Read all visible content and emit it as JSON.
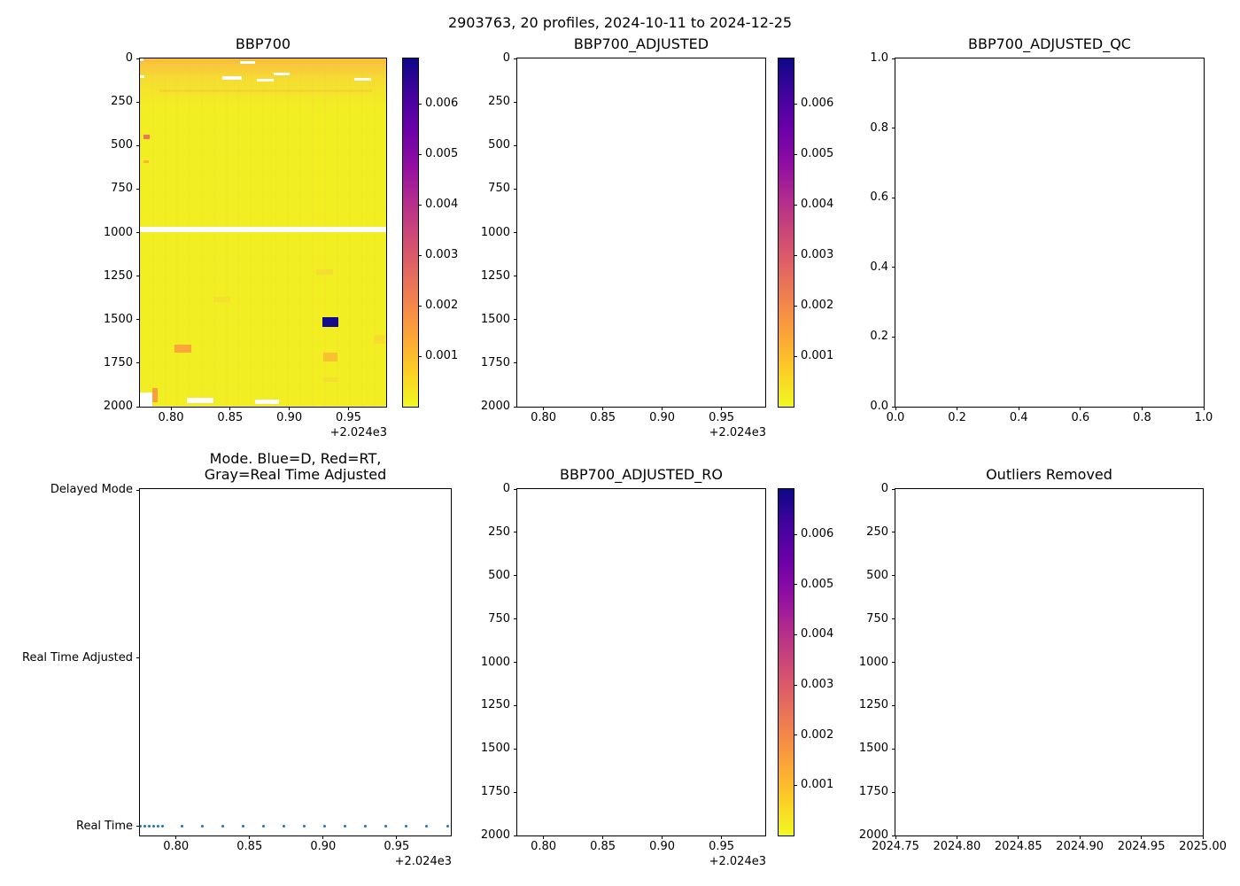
{
  "chart_data": {
    "type": "heatmap",
    "suptitle": "2903763, 20 profiles, 2024-10-11 to 2024-12-25",
    "legend_position": "none",
    "grid": false,
    "colorbar": {
      "els": [
        "cb1",
        "cb2",
        "cb5"
      ],
      "vmin": 0.0,
      "vmax": 0.0069,
      "ticks": [
        0.006,
        0.005,
        0.004,
        0.003,
        0.002,
        0.001
      ],
      "tick_labels": [
        "0.006",
        "0.005",
        "0.004",
        "0.003",
        "0.002",
        "0.001"
      ],
      "gradient": [
        "#0d0887",
        "#41049d",
        "#6a00a8",
        "#8f0da4",
        "#b12a90",
        "#cc4778",
        "#e16462",
        "#f2844b",
        "#fca636",
        "#fcce25",
        "#f0f921"
      ]
    },
    "panels": [
      {
        "el": "plot1",
        "title": "BBP700",
        "xlim": [
          2024.7738,
          2024.9818
        ],
        "ylim": [
          0,
          2000
        ],
        "xticks": [
          2024.8,
          2024.85,
          2024.9,
          2024.95
        ],
        "xtick_labels": [
          "0.80",
          "0.85",
          "0.90",
          "0.95"
        ],
        "x_offset_text": "+2.024e3",
        "yticks": [
          0,
          250,
          500,
          750,
          1000,
          1250,
          1500,
          1750,
          2000
        ],
        "ytick_labels": [
          "0",
          "250",
          "500",
          "750",
          "1000",
          "1250",
          "1500",
          "1750",
          "2000"
        ],
        "heatmap": {
          "base_color": "#f1ef22",
          "surface_colors": [
            "#f7ba3a",
            "#f8c93a",
            "#f5dd31"
          ],
          "patches": [
            {
              "x0": 2024.7738,
              "x1": 2024.9818,
              "d0": 968,
              "d1": 996,
              "c": "#ffffff"
            },
            {
              "x0": 2024.9278,
              "x1": 2024.9413,
              "d0": 1488,
              "d1": 1540,
              "c": "#140d8b"
            },
            {
              "x0": 2024.8029,
              "x1": 2024.8172,
              "d0": 1642,
              "d1": 1691,
              "c": "#faa63a"
            },
            {
              "x0": 2024.9288,
              "x1": 2024.9404,
              "d0": 1690,
              "d1": 1738,
              "c": "#f9c132"
            },
            {
              "x0": 2024.7846,
              "x1": 2024.7891,
              "d0": 1891,
              "d1": 1976,
              "c": "#f8a03c"
            },
            {
              "x0": 2024.7738,
              "x1": 2024.7846,
              "d0": 1917,
              "d1": 2000,
              "c": "#ffffff"
            },
            {
              "x0": 2024.858,
              "x1": 2024.8714,
              "d0": 16,
              "d1": 30,
              "c": "#ffffff"
            },
            {
              "x0": 2024.8436,
              "x1": 2024.8602,
              "d0": 103,
              "d1": 121,
              "c": "#ffffff"
            },
            {
              "x0": 2024.8865,
              "x1": 2024.9,
              "d0": 82,
              "d1": 95,
              "c": "#ffffff"
            },
            {
              "x0": 2024.8729,
              "x1": 2024.8865,
              "d0": 118,
              "d1": 131,
              "c": "#ffffff"
            },
            {
              "x0": 2024.9549,
              "x1": 2024.9692,
              "d0": 113,
              "d1": 128,
              "c": "#ffffff"
            },
            {
              "x0": 2024.79,
              "x1": 2024.97,
              "d0": 180,
              "d1": 192,
              "c": "#f8bd3866"
            },
            {
              "x0": 2024.7771,
              "x1": 2024.7821,
              "d0": 440,
              "d1": 465,
              "c": "#ef7856"
            },
            {
              "x0": 2024.7771,
              "x1": 2024.7811,
              "d0": 585,
              "d1": 600,
              "c": "#f9b43a"
            },
            {
              "x0": 2024.923,
              "x1": 2024.937,
              "d0": 1210,
              "d1": 1242,
              "c": "#f5de30"
            },
            {
              "x0": 2024.836,
              "x1": 2024.85,
              "d0": 1368,
              "d1": 1400,
              "c": "#f5e030"
            },
            {
              "x0": 2024.971,
              "x1": 2024.981,
              "d0": 1586,
              "d1": 1640,
              "c": "#f5df2c"
            },
            {
              "x0": 2024.929,
              "x1": 2024.9415,
              "d0": 1830,
              "d1": 1858,
              "c": "#f5df30"
            },
            {
              "x0": 2024.8134,
              "x1": 2024.836,
              "d0": 1950,
              "d1": 1982,
              "c": "#ffffff"
            },
            {
              "x0": 2024.8714,
              "x1": 2024.891,
              "d0": 1958,
              "d1": 1985,
              "c": "#ffffff"
            },
            {
              "x0": 2024.7738,
              "x1": 2024.7775,
              "d0": 95,
              "d1": 112,
              "c": "#ffffff"
            },
            {
              "x0": 2024.7738,
              "x1": 2024.7768,
              "d0": 2,
              "d1": 14,
              "c": "#ffffff"
            }
          ]
        }
      },
      {
        "el": "plot2",
        "title": "BBP700_ADJUSTED",
        "xlim": [
          2024.7779,
          2024.9869
        ],
        "ylim": [
          0,
          2000
        ],
        "xticks": [
          2024.8,
          2024.85,
          2024.9,
          2024.95
        ],
        "xtick_labels": [
          "0.80",
          "0.85",
          "0.90",
          "0.95"
        ],
        "x_offset_text": "+2.024e3",
        "yticks": [
          0,
          250,
          500,
          750,
          1000,
          1250,
          1500,
          1750,
          2000
        ],
        "ytick_labels": [
          "0",
          "250",
          "500",
          "750",
          "1000",
          "1250",
          "1500",
          "1750",
          "2000"
        ]
      },
      {
        "el": "plot3",
        "title": "BBP700_ADJUSTED_QC",
        "xlim": [
          0,
          1
        ],
        "ylim": [
          1,
          0
        ],
        "xticks": [
          0,
          0.2,
          0.4,
          0.6,
          0.8,
          1.0
        ],
        "xtick_labels": [
          "0.0",
          "0.2",
          "0.4",
          "0.6",
          "0.8",
          "1.0"
        ],
        "yticks": [
          1.0,
          0.8,
          0.6,
          0.4,
          0.2,
          0.0
        ],
        "ytick_labels": [
          "1.0",
          "0.8",
          "0.6",
          "0.4",
          "0.2",
          "0.0"
        ]
      },
      {
        "el": "plot4",
        "title": "Mode. Blue=D, Red=RT,\nGray=Real Time Adjusted",
        "xlim": [
          2024.7755,
          2024.9868
        ],
        "ylim": [
          2.006,
          -0.055
        ],
        "xticks": [
          2024.8,
          2024.85,
          2024.9,
          2024.95
        ],
        "xtick_labels": [
          "0.80",
          "0.85",
          "0.90",
          "0.95"
        ],
        "x_offset_text": "+2.024e3",
        "yticks": [
          2,
          1,
          0
        ],
        "ytick_labels": [
          "Delayed Mode",
          "Real Time Adjusted",
          "Real Time"
        ],
        "scatter": {
          "color": "#1f77b4",
          "size": 3,
          "y": 0,
          "y_category": "Real Time",
          "x": [
            2024.7757,
            2024.7787,
            2024.7817,
            2024.7847,
            2024.7877,
            2024.7907,
            2024.8042,
            2024.8181,
            2024.8319,
            2024.8458,
            2024.8597,
            2024.8735,
            2024.8874,
            2024.9012,
            2024.9151,
            2024.929,
            2024.9428,
            2024.9567,
            2024.9705,
            2024.9844
          ]
        }
      },
      {
        "el": "plot5",
        "title": "BBP700_ADJUSTED_RO",
        "xlim": [
          2024.7779,
          2024.9869
        ],
        "ylim": [
          0,
          2000
        ],
        "xticks": [
          2024.8,
          2024.85,
          2024.9,
          2024.95
        ],
        "xtick_labels": [
          "0.80",
          "0.85",
          "0.90",
          "0.95"
        ],
        "x_offset_text": "+2.024e3",
        "yticks": [
          0,
          250,
          500,
          750,
          1000,
          1250,
          1500,
          1750,
          2000
        ],
        "ytick_labels": [
          "0",
          "250",
          "500",
          "750",
          "1000",
          "1250",
          "1500",
          "1750",
          "2000"
        ]
      },
      {
        "el": "plot6",
        "title": "Outliers Removed",
        "xlim": [
          2024.75,
          2025.0
        ],
        "ylim": [
          0,
          2000
        ],
        "xticks": [
          2024.75,
          2024.8,
          2024.85,
          2024.9,
          2024.95,
          2025.0
        ],
        "xtick_labels": [
          "2024.75",
          "2024.80",
          "2024.85",
          "2024.90",
          "2024.95",
          "2025.00"
        ],
        "yticks": [
          0,
          250,
          500,
          750,
          1000,
          1250,
          1500,
          1750,
          2000
        ],
        "ytick_labels": [
          "0",
          "250",
          "500",
          "750",
          "1000",
          "1250",
          "1500",
          "1750",
          "2000"
        ]
      }
    ]
  }
}
